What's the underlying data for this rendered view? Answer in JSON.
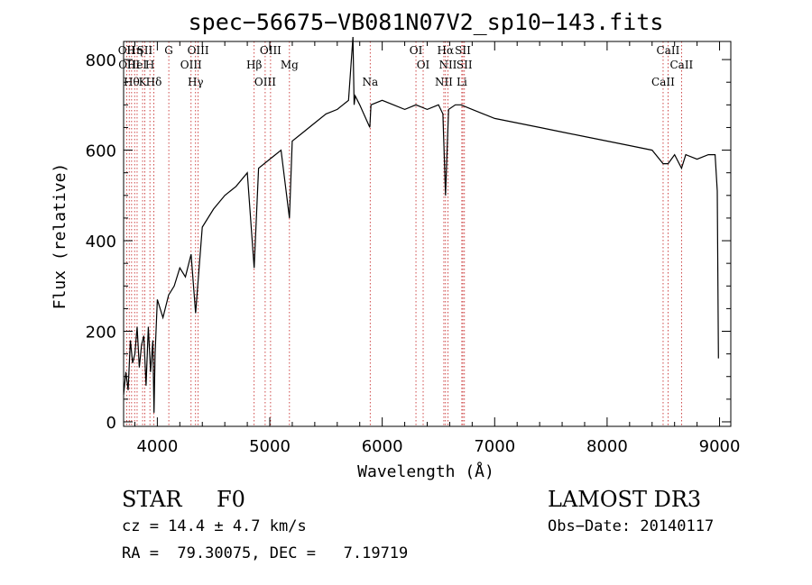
{
  "chart_data": {
    "type": "line",
    "title": "spec−56675−VB081N07V2_sp10−143.fits",
    "xlabel": "Wavelength (Å)",
    "ylabel": "Flux (relative)",
    "xlim": [
      3700,
      9100
    ],
    "ylim": [
      -10,
      840
    ],
    "xticks": [
      4000,
      5000,
      6000,
      7000,
      8000,
      9000
    ],
    "xtick_labels": [
      "4000",
      "5000",
      "6000",
      "7000",
      "8000",
      "9000"
    ],
    "yticks": [
      0,
      200,
      400,
      600,
      800
    ],
    "ytick_labels": [
      "0",
      "200",
      "400",
      "600",
      "800"
    ],
    "grid": false,
    "legend": "none",
    "series": [
      {
        "name": "flux",
        "x": [
          3700,
          3720,
          3740,
          3760,
          3780,
          3800,
          3820,
          3840,
          3860,
          3880,
          3900,
          3920,
          3940,
          3960,
          3970,
          3980,
          4000,
          4050,
          4100,
          4150,
          4200,
          4250,
          4300,
          4340,
          4400,
          4500,
          4600,
          4700,
          4800,
          4861,
          4900,
          5000,
          5100,
          5175,
          5200,
          5300,
          5400,
          5500,
          5600,
          5700,
          5740,
          5750,
          5760,
          5800,
          5890,
          5900,
          6000,
          6100,
          6200,
          6300,
          6400,
          6500,
          6540,
          6563,
          6590,
          6650,
          6700,
          6800,
          6900,
          7000,
          7200,
          7400,
          7600,
          7800,
          8000,
          8200,
          8400,
          8498,
          8542,
          8600,
          8662,
          8700,
          8800,
          8900,
          8960,
          8980,
          8990
        ],
        "y": [
          60,
          110,
          70,
          180,
          130,
          150,
          210,
          120,
          170,
          190,
          80,
          210,
          110,
          180,
          20,
          150,
          270,
          230,
          280,
          300,
          340,
          320,
          370,
          240,
          430,
          470,
          500,
          520,
          550,
          340,
          560,
          580,
          600,
          450,
          620,
          640,
          660,
          680,
          690,
          710,
          850,
          700,
          720,
          700,
          650,
          700,
          710,
          700,
          690,
          700,
          690,
          700,
          680,
          500,
          690,
          700,
          700,
          690,
          680,
          670,
          660,
          650,
          640,
          630,
          620,
          610,
          600,
          570,
          570,
          590,
          560,
          590,
          580,
          590,
          590,
          510,
          140
        ]
      }
    ],
    "lines": [
      {
        "x": 3727,
        "label": "OII"
      },
      {
        "x": 3750,
        "label": "OIII"
      },
      {
        "x": 3771,
        "label": "Hθ"
      },
      {
        "x": 3798,
        "label": "Hη"
      },
      {
        "x": 3820,
        "label": "HeI"
      },
      {
        "x": 3869,
        "label": "K"
      },
      {
        "x": 3888,
        "label": "SII"
      },
      {
        "x": 3934,
        "label": "H"
      },
      {
        "x": 3969,
        "label": "Hδ"
      },
      {
        "x": 4102,
        "label": "G"
      },
      {
        "x": 4300,
        "label": "OIII"
      },
      {
        "x": 4340,
        "label": "Hγ"
      },
      {
        "x": 4363,
        "label": "OIII"
      },
      {
        "x": 4861,
        "label": "Hβ"
      },
      {
        "x": 4959,
        "label": "OIII"
      },
      {
        "x": 5007,
        "label": "OIII"
      },
      {
        "x": 5175,
        "label": "Mg"
      },
      {
        "x": 5893,
        "label": "Na"
      },
      {
        "x": 6300,
        "label": "OI"
      },
      {
        "x": 6364,
        "label": "OI"
      },
      {
        "x": 6548,
        "label": "NII"
      },
      {
        "x": 6563,
        "label": "Hα"
      },
      {
        "x": 6584,
        "label": "NII"
      },
      {
        "x": 6708,
        "label": "Li"
      },
      {
        "x": 6717,
        "label": "SII"
      },
      {
        "x": 6731,
        "label": "SII"
      },
      {
        "x": 8498,
        "label": "CaII"
      },
      {
        "x": 8542,
        "label": "CaII"
      },
      {
        "x": 8662,
        "label": "CaII"
      }
    ]
  },
  "info": {
    "object_type": "STAR",
    "subclass": "F0",
    "survey": "LAMOST DR3",
    "cz": "cz = 14.4 ± 4.7 km/s",
    "obs_date": "Obs−Date: 20140117",
    "coords": "RA =  79.30075, DEC =   7.19719"
  }
}
